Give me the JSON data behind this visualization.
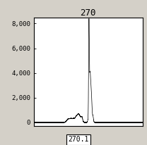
{
  "title": "270",
  "xlabel_box": "270.1",
  "ylim": [
    -300,
    8500
  ],
  "yticks": [
    0,
    2000,
    4000,
    6000,
    8000
  ],
  "ytick_labels": [
    "0",
    "2,000",
    "4,000",
    "6,000",
    "8,000"
  ],
  "background_color": "#d4d0c8",
  "plot_bg_color": "#ffffff",
  "line_color": "#000000",
  "title_fontsize": 9,
  "tick_fontsize": 6.5,
  "xlim": [
    100,
    400
  ]
}
